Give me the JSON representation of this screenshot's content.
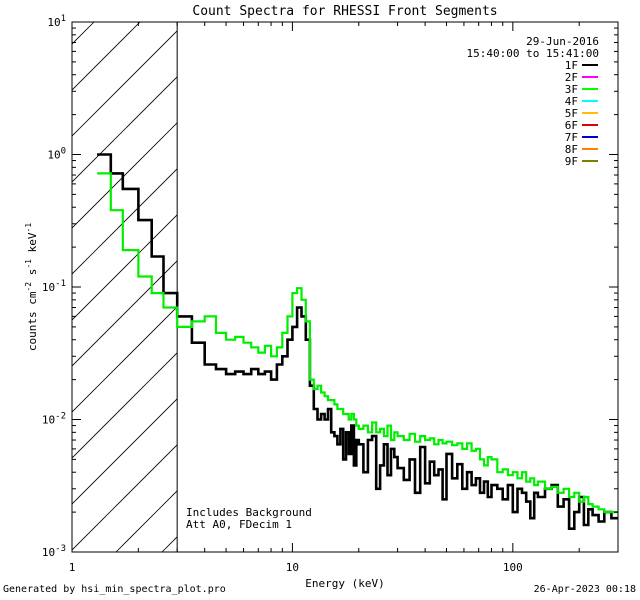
{
  "chart_data": {
    "type": "line",
    "title": "Count Spectra for RHESSI Front Segments",
    "xlabel": "Energy (keV)",
    "ylabel_base": "counts cm",
    "ylabel_parts": [
      "counts cm",
      "-2",
      " s",
      "-1",
      " keV",
      "-1"
    ],
    "xscale": "log",
    "yscale": "log",
    "xlim": [
      1,
      300
    ],
    "ylim": [
      0.001,
      10
    ],
    "xticks": [
      {
        "v": 1,
        "label": "1"
      },
      {
        "v": 10,
        "label": "10"
      },
      {
        "v": 100,
        "label": "100"
      }
    ],
    "yticks": [
      {
        "v": 0.001,
        "base": "10",
        "exp": "-3"
      },
      {
        "v": 0.01,
        "base": "10",
        "exp": "-2"
      },
      {
        "v": 0.1,
        "base": "10",
        "exp": "-1"
      },
      {
        "v": 1,
        "base": "10",
        "exp": "0"
      },
      {
        "v": 10,
        "base": "10",
        "exp": "1"
      }
    ],
    "date": "29-Jun-2016",
    "time_range": "15:40:00 to 15:41:00",
    "hatch_max_energy": 3,
    "annotations": [
      "Includes Background",
      "Att A0, FDecim 1"
    ],
    "legend": [
      {
        "label": "1F",
        "color": "#000000"
      },
      {
        "label": "2F",
        "color": "#ff00ff"
      },
      {
        "label": "3F",
        "color": "#00ff00"
      },
      {
        "label": "4F",
        "color": "#00ffff"
      },
      {
        "label": "5F",
        "color": "#ffbf00"
      },
      {
        "label": "6F",
        "color": "#e00000"
      },
      {
        "label": "7F",
        "color": "#0000cc"
      },
      {
        "label": "8F",
        "color": "#ff8000"
      },
      {
        "label": "9F",
        "color": "#808000"
      }
    ],
    "series": [
      {
        "name": "1F",
        "color": "#000000",
        "width": 2.6,
        "edges": [
          1.3,
          1.5,
          1.7,
          2.0,
          2.3,
          2.6,
          3.0,
          3.5,
          4.0,
          4.5,
          5.0,
          5.5,
          6.0,
          6.5,
          7.0,
          7.5,
          8.0,
          8.5,
          9.0,
          9.5,
          10.0,
          10.5,
          11.0,
          11.5,
          12.0,
          12.5,
          13.0,
          13.5,
          14.0,
          14.5,
          15.0,
          15.5,
          16.0,
          16.5,
          17.0,
          17.5,
          18.0,
          18.5,
          19.0,
          19.5,
          20.0,
          21.0,
          22.0,
          23.0,
          24.0,
          25.0,
          26.0,
          27.0,
          28.0,
          29.0,
          30.0,
          32.0,
          34.0,
          36.0,
          38.0,
          40.0,
          42.0,
          44.0,
          46.0,
          48.0,
          50.0,
          53.0,
          56.0,
          59.0,
          62.0,
          65.0,
          68.0,
          71.0,
          74.0,
          77.0,
          80.0,
          85.0,
          90.0,
          95.0,
          100.0,
          105.0,
          110.0,
          115.0,
          120.0,
          125.0,
          130.0,
          140.0,
          150.0,
          160.0,
          170.0,
          180.0,
          190.0,
          200.0,
          210.0,
          220.0,
          230.0,
          245.0,
          260.0,
          280.0,
          300.0
        ],
        "values": [
          1.0,
          0.72,
          0.55,
          0.32,
          0.17,
          0.09,
          0.06,
          0.038,
          0.026,
          0.024,
          0.022,
          0.023,
          0.022,
          0.024,
          0.022,
          0.023,
          0.02,
          0.026,
          0.03,
          0.04,
          0.05,
          0.07,
          0.06,
          0.04,
          0.018,
          0.012,
          0.01,
          0.011,
          0.01,
          0.012,
          0.008,
          0.0075,
          0.0065,
          0.0085,
          0.005,
          0.008,
          0.0055,
          0.009,
          0.0045,
          0.007,
          0.0065,
          0.004,
          0.007,
          0.0075,
          0.003,
          0.0045,
          0.0065,
          0.0038,
          0.006,
          0.0052,
          0.0043,
          0.0035,
          0.005,
          0.0028,
          0.0062,
          0.0033,
          0.0048,
          0.0038,
          0.0042,
          0.0025,
          0.0055,
          0.0036,
          0.0046,
          0.003,
          0.004,
          0.0032,
          0.0036,
          0.0028,
          0.0034,
          0.0026,
          0.0032,
          0.003,
          0.0025,
          0.0032,
          0.002,
          0.003,
          0.0028,
          0.0024,
          0.0018,
          0.0028,
          0.0026,
          0.003,
          0.0032,
          0.0022,
          0.0025,
          0.0015,
          0.002,
          0.0026,
          0.0016,
          0.0021,
          0.0019,
          0.0017,
          0.002,
          0.0018
        ]
      },
      {
        "name": "3F",
        "color": "#00ee00",
        "width": 2.2,
        "edges": [
          1.3,
          1.5,
          1.7,
          2.0,
          2.3,
          2.6,
          3.0,
          3.5,
          4.0,
          4.5,
          5.0,
          5.5,
          6.0,
          6.5,
          7.0,
          7.5,
          8.0,
          8.5,
          9.0,
          9.5,
          10.0,
          10.5,
          11.0,
          11.5,
          12.0,
          12.5,
          13.0,
          13.5,
          14.0,
          14.5,
          15.0,
          15.5,
          16.0,
          16.5,
          17.0,
          17.5,
          18.0,
          18.5,
          19.0,
          19.5,
          20.0,
          21.0,
          22.0,
          23.0,
          24.0,
          25.0,
          26.0,
          27.0,
          28.0,
          29.0,
          30.0,
          32.0,
          34.0,
          36.0,
          38.0,
          40.0,
          42.0,
          44.0,
          46.0,
          48.0,
          50.0,
          53.0,
          56.0,
          59.0,
          62.0,
          65.0,
          68.0,
          71.0,
          74.0,
          77.0,
          80.0,
          85.0,
          90.0,
          95.0,
          100.0,
          105.0,
          110.0,
          115.0,
          120.0,
          125.0,
          130.0,
          140.0,
          150.0,
          160.0,
          170.0,
          180.0,
          190.0,
          200.0,
          210.0,
          220.0,
          230.0,
          245.0,
          260.0,
          280.0,
          300.0
        ],
        "values": [
          0.72,
          0.38,
          0.19,
          0.12,
          0.09,
          0.07,
          0.05,
          0.055,
          0.06,
          0.045,
          0.04,
          0.042,
          0.038,
          0.035,
          0.032,
          0.036,
          0.03,
          0.035,
          0.045,
          0.06,
          0.09,
          0.098,
          0.08,
          0.055,
          0.02,
          0.017,
          0.018,
          0.016,
          0.015,
          0.014,
          0.014,
          0.013,
          0.012,
          0.012,
          0.011,
          0.011,
          0.01,
          0.011,
          0.01,
          0.009,
          0.0085,
          0.009,
          0.008,
          0.0095,
          0.008,
          0.0085,
          0.0075,
          0.009,
          0.007,
          0.008,
          0.0075,
          0.007,
          0.0078,
          0.0068,
          0.0075,
          0.007,
          0.0072,
          0.0065,
          0.007,
          0.0066,
          0.0068,
          0.0064,
          0.0066,
          0.006,
          0.0066,
          0.0058,
          0.006,
          0.005,
          0.0045,
          0.0052,
          0.005,
          0.004,
          0.0042,
          0.0038,
          0.004,
          0.0036,
          0.004,
          0.0034,
          0.0036,
          0.0032,
          0.0034,
          0.003,
          0.0031,
          0.0028,
          0.003,
          0.0026,
          0.0028,
          0.0024,
          0.0026,
          0.0023,
          0.0022,
          0.0021,
          0.002,
          0.002
        ]
      }
    ]
  },
  "footer": {
    "left": "Generated by hsi_min_spectra_plot.pro",
    "right": "26-Apr-2023 00:18"
  }
}
